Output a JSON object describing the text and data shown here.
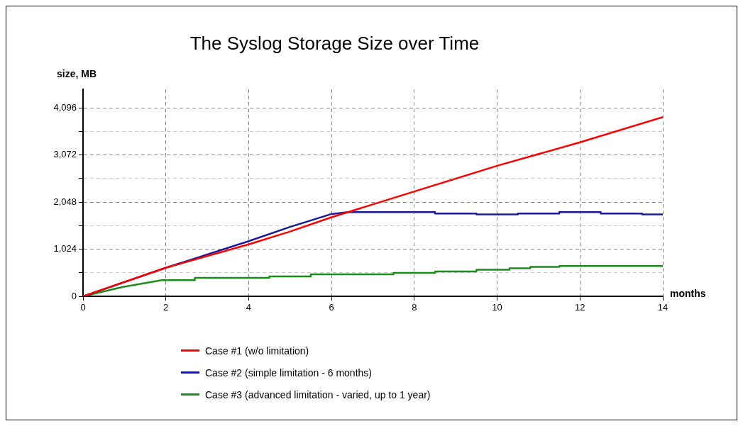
{
  "chart_data": {
    "type": "line",
    "title": "The Syslog Storage Size over Time",
    "xlabel": "months",
    "ylabel": "size, MB",
    "xlim": [
      0,
      14
    ],
    "xticks": [
      0,
      2,
      4,
      6,
      8,
      10,
      12,
      14
    ],
    "ylim": [
      0,
      4500
    ],
    "yticks": [
      0,
      {
        "value": 512,
        "label": null
      },
      {
        "value": 1024,
        "label": "1,024"
      },
      {
        "value": 1536,
        "label": null
      },
      {
        "value": 2048,
        "label": "2,048"
      },
      {
        "value": 2560,
        "label": null
      },
      {
        "value": 3072,
        "label": "3,072"
      },
      {
        "value": 3584,
        "label": null
      },
      {
        "value": 4096,
        "label": "4,096"
      }
    ],
    "grid": true,
    "legend": "bottom",
    "series": [
      {
        "name": "Case #1 (w/o limitation)",
        "color": "#ff0000",
        "x": [
          0,
          2,
          4,
          5,
          6,
          8,
          10,
          12,
          14
        ],
        "values": [
          0,
          620,
          1130,
          1410,
          1720,
          2280,
          2840,
          3350,
          3900
        ]
      },
      {
        "name": "Case #2 (simple limitation - 6 months)",
        "color": "#1a1a99",
        "x": [
          0,
          2,
          4,
          5,
          6,
          6.4,
          8.5,
          8.5,
          9.5,
          9.5,
          10.5,
          10.5,
          11.5,
          11.5,
          12.5,
          12.5,
          13.5,
          13.5,
          14
        ],
        "values": [
          0,
          620,
          1200,
          1510,
          1790,
          1830,
          1830,
          1800,
          1800,
          1780,
          1780,
          1800,
          1800,
          1830,
          1830,
          1800,
          1800,
          1780,
          1780
        ]
      },
      {
        "name": "Case #3 (advanced limitation - varied, up to 1 year)",
        "color": "#1a8c1a",
        "x": [
          0,
          0.95,
          1.9,
          2.7,
          2.7,
          4.5,
          4.5,
          5.5,
          5.5,
          7.5,
          7.5,
          8.5,
          8.5,
          9.5,
          9.5,
          10.3,
          10.3,
          10.8,
          10.8,
          11.5,
          11.5,
          14
        ],
        "values": [
          0,
          200,
          350,
          350,
          400,
          400,
          430,
          430,
          480,
          480,
          510,
          510,
          540,
          540,
          580,
          580,
          610,
          610,
          640,
          640,
          660,
          660
        ]
      }
    ]
  }
}
